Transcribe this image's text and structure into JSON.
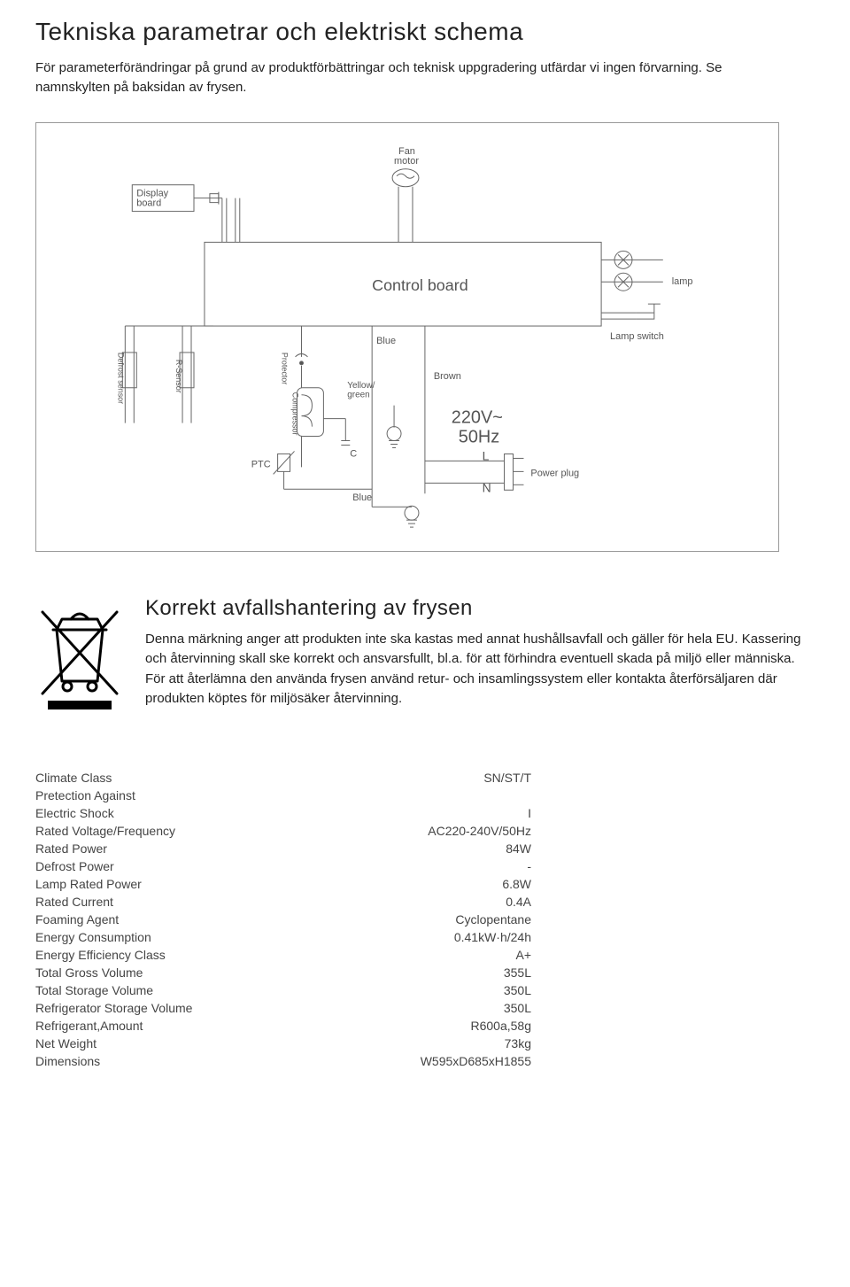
{
  "heading": {
    "title": "Tekniska parametrar och elektriskt schema",
    "intro": "För parameterförändringar på grund av produktförbättringar och teknisk uppgradering utfärdar vi ingen förvarning. Se namnskylten på baksidan av frysen."
  },
  "schematic": {
    "stroke": "#666666",
    "stroke_width": 1,
    "text_color": "#555555",
    "font_size_main": 14,
    "font_size_small": 10,
    "labels": {
      "display_board": "Display\nboard",
      "fan_motor": "Fan\nmotor",
      "control_board": "Control board",
      "lamp": "lamp",
      "lamp_switch": "Lamp switch",
      "blue1": "Blue",
      "blue2": "Blue",
      "brown": "Brown",
      "yellow_green": "Yellow/\ngreen",
      "defrost_sensor": "Defrost sensor",
      "rsensor": "R-Sensor",
      "protector": "Protector",
      "compressor": "Compressor",
      "ptc": "PTC",
      "c": "C",
      "voltage": "220V~",
      "freq": "50Hz",
      "l": "L",
      "n": "N",
      "power_plug": "Power plug"
    }
  },
  "disposal": {
    "subheading": "Korrekt avfallshantering av frysen",
    "paragraph": "Denna märkning anger att produkten inte ska kastas med annat hushållsavfall och gäller för hela EU. Kassering och återvinning skall ske korrekt och ansvarsfullt, bl.a. för att förhindra eventuell skada på miljö eller människa. För att återlämna den använda frysen använd retur- och insamlingssystem eller kontakta återförsäljaren där produkten köptes för miljösäker återvinning."
  },
  "specs": {
    "rows": [
      {
        "label": "Climate Class",
        "value": "SN/ST/T"
      },
      {
        "label": "Pretection Against",
        "value": ""
      },
      {
        "label": "Electric Shock",
        "value": "I"
      },
      {
        "label": "Rated Voltage/Frequency",
        "value": "AC220-240V/50Hz"
      },
      {
        "label": "Rated Power",
        "value": "84W"
      },
      {
        "label": "Defrost Power",
        "value": "-"
      },
      {
        "label": "Lamp Rated Power",
        "value": "6.8W"
      },
      {
        "label": "Rated Current",
        "value": "0.4A"
      },
      {
        "label": "Foaming Agent",
        "value": "Cyclopentane"
      },
      {
        "label": "Energy Consumption",
        "value": "0.41kW·h/24h"
      },
      {
        "label": "Energy Efficiency Class",
        "value": "A+"
      },
      {
        "label": "Total Gross Volume",
        "value": "355L"
      },
      {
        "label": "Total Storage Volume",
        "value": "350L"
      },
      {
        "label": "Refrigerator Storage Volume",
        "value": "350L"
      },
      {
        "label": "Refrigerant,Amount",
        "value": "R600a,58g"
      },
      {
        "label": "Net Weight",
        "value": "73kg"
      },
      {
        "label": "Dimensions",
        "value": "W595xD685xH1855"
      }
    ]
  }
}
